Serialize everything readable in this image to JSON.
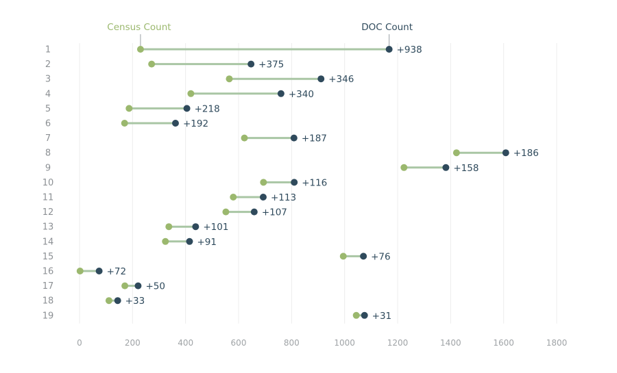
{
  "chart_data": {
    "type": "dumbbell",
    "series": [
      {
        "name": "Census Count",
        "color": "#9bb86e"
      },
      {
        "name": "DOC Count",
        "color": "#2f4a5c"
      }
    ],
    "connector_color": "#a9c6a4",
    "rows": [
      {
        "label": "1",
        "census": 230,
        "doc": 1168,
        "diff": "+938"
      },
      {
        "label": "2",
        "census": 272,
        "doc": 647,
        "diff": "+375"
      },
      {
        "label": "3",
        "census": 565,
        "doc": 911,
        "diff": "+346"
      },
      {
        "label": "4",
        "census": 420,
        "doc": 760,
        "diff": "+340"
      },
      {
        "label": "5",
        "census": 187,
        "doc": 405,
        "diff": "+218"
      },
      {
        "label": "6",
        "census": 170,
        "doc": 362,
        "diff": "+192"
      },
      {
        "label": "7",
        "census": 622,
        "doc": 809,
        "diff": "+187"
      },
      {
        "label": "8",
        "census": 1422,
        "doc": 1608,
        "diff": "+186"
      },
      {
        "label": "9",
        "census": 1224,
        "doc": 1382,
        "diff": "+158"
      },
      {
        "label": "10",
        "census": 694,
        "doc": 810,
        "diff": "+116"
      },
      {
        "label": "11",
        "census": 580,
        "doc": 693,
        "diff": "+113"
      },
      {
        "label": "12",
        "census": 552,
        "doc": 659,
        "diff": "+107"
      },
      {
        "label": "13",
        "census": 337,
        "doc": 438,
        "diff": "+101"
      },
      {
        "label": "14",
        "census": 324,
        "doc": 415,
        "diff": "+91"
      },
      {
        "label": "15",
        "census": 995,
        "doc": 1071,
        "diff": "+76"
      },
      {
        "label": "16",
        "census": 2,
        "doc": 74,
        "diff": "+72"
      },
      {
        "label": "17",
        "census": 171,
        "doc": 221,
        "diff": "+50"
      },
      {
        "label": "18",
        "census": 111,
        "doc": 144,
        "diff": "+33"
      },
      {
        "label": "19",
        "census": 1044,
        "doc": 1075,
        "diff": "+31"
      }
    ],
    "x_ticks": [
      0,
      200,
      400,
      600,
      800,
      1000,
      1200,
      1400,
      1600,
      1800
    ],
    "xlim": [
      0,
      1800
    ],
    "grid": "vertical",
    "legend": "direct labels above first row"
  }
}
